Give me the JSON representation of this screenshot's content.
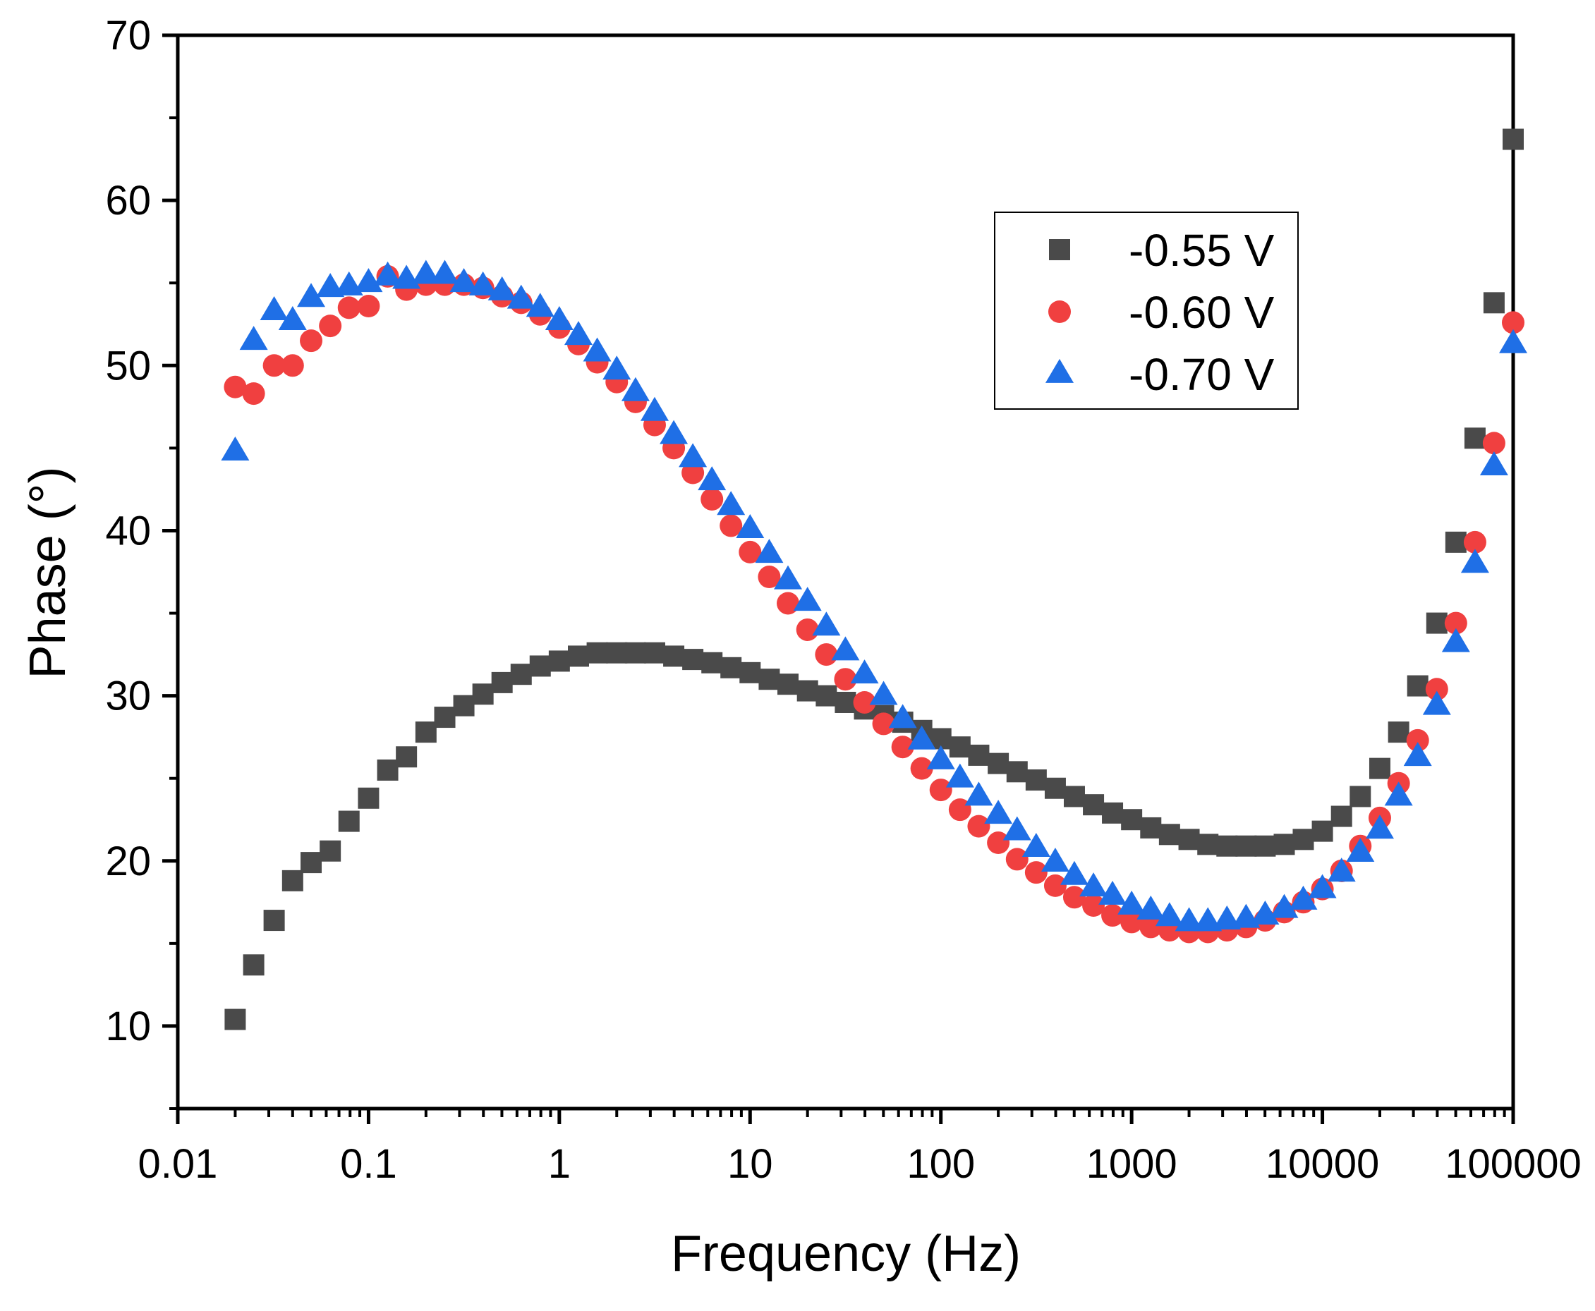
{
  "chart_data": {
    "type": "scatter",
    "title": "",
    "xlabel": "Frequency (Hz)",
    "ylabel": "Phase (°)",
    "xscale": "log",
    "xlim": [
      0.01,
      100000
    ],
    "ylim": [
      5,
      70
    ],
    "grid": false,
    "legend_position": "top-right",
    "xticks": [
      0.01,
      0.1,
      1,
      10,
      100,
      1000,
      10000,
      100000
    ],
    "xtick_labels": [
      "0.01",
      "0.1",
      "1",
      "10",
      "100",
      "1000",
      "10000",
      "100000"
    ],
    "yticks": [
      10,
      20,
      30,
      40,
      50,
      60,
      70
    ],
    "ytick_labels": [
      "10",
      "20",
      "30",
      "40",
      "50",
      "60",
      "70"
    ],
    "x": [
      0.02,
      0.025,
      0.032,
      0.04,
      0.05,
      0.063,
      0.079,
      0.1,
      0.126,
      0.158,
      0.2,
      0.251,
      0.316,
      0.398,
      0.501,
      0.631,
      0.794,
      1,
      1.26,
      1.58,
      2,
      2.51,
      3.16,
      3.98,
      5.01,
      6.31,
      7.94,
      10,
      12.6,
      15.8,
      20,
      25.1,
      31.6,
      39.8,
      50.1,
      63.1,
      79.4,
      100,
      126,
      158,
      200,
      251,
      316,
      398,
      501,
      631,
      794,
      1000,
      1260,
      1580,
      2000,
      2510,
      3160,
      3980,
      5010,
      6310,
      7940,
      10000,
      12600,
      15800,
      20000,
      25100,
      31600,
      39800,
      50100,
      63100,
      79400,
      100000
    ],
    "series": [
      {
        "name": "-0.55 V",
        "marker": "square",
        "color": "#4a4a4a",
        "values": [
          10.4,
          13.7,
          16.4,
          18.8,
          19.9,
          20.6,
          22.4,
          23.8,
          25.5,
          26.3,
          27.8,
          28.7,
          29.4,
          30.1,
          30.8,
          31.3,
          31.8,
          32.1,
          32.4,
          32.6,
          32.6,
          32.6,
          32.6,
          32.4,
          32.2,
          32.0,
          31.7,
          31.4,
          31.0,
          30.7,
          30.3,
          30.0,
          29.6,
          29.2,
          28.8,
          28.4,
          27.9,
          27.4,
          26.9,
          26.4,
          25.9,
          25.4,
          24.9,
          24.4,
          23.9,
          23.4,
          22.9,
          22.5,
          22.0,
          21.6,
          21.3,
          21.0,
          20.9,
          20.9,
          20.9,
          21.0,
          21.3,
          21.8,
          22.7,
          23.9,
          25.6,
          27.8,
          30.6,
          34.4,
          39.3,
          45.6,
          53.8,
          63.7
        ]
      },
      {
        "name": "-0.60 V",
        "marker": "circle",
        "color": "#f04040",
        "values": [
          48.7,
          48.3,
          50.0,
          50.0,
          51.5,
          52.4,
          53.5,
          53.6,
          55.4,
          54.6,
          54.9,
          54.9,
          54.9,
          54.7,
          54.2,
          53.8,
          53.1,
          52.3,
          51.3,
          50.2,
          49.0,
          47.8,
          46.4,
          45.0,
          43.5,
          41.9,
          40.3,
          38.7,
          37.2,
          35.6,
          34.0,
          32.5,
          31.0,
          29.6,
          28.3,
          26.9,
          25.6,
          24.3,
          23.1,
          22.1,
          21.1,
          20.1,
          19.3,
          18.5,
          17.8,
          17.3,
          16.7,
          16.3,
          16.0,
          15.8,
          15.7,
          15.7,
          15.8,
          16.0,
          16.4,
          16.9,
          17.5,
          18.3,
          19.4,
          20.9,
          22.6,
          24.7,
          27.3,
          30.4,
          34.4,
          39.3,
          45.3,
          52.6
        ]
      },
      {
        "name": "-0.70 V",
        "marker": "triangle",
        "color": "#1f6fe6",
        "values": [
          44.8,
          51.5,
          53.3,
          52.7,
          54.1,
          54.7,
          54.8,
          55.0,
          55.4,
          55.2,
          55.5,
          55.5,
          55.0,
          54.8,
          54.5,
          54.0,
          53.5,
          52.7,
          51.8,
          50.8,
          49.7,
          48.4,
          47.2,
          45.8,
          44.4,
          43.0,
          41.5,
          40.1,
          38.6,
          37.0,
          35.7,
          34.2,
          32.7,
          31.3,
          30.0,
          28.6,
          27.3,
          26.1,
          25.0,
          23.9,
          22.8,
          21.8,
          20.8,
          19.9,
          19.1,
          18.4,
          17.9,
          17.3,
          17.0,
          16.6,
          16.3,
          16.3,
          16.4,
          16.5,
          16.7,
          17.1,
          17.6,
          18.3,
          19.3,
          20.5,
          21.9,
          23.9,
          26.3,
          29.4,
          33.2,
          38.0,
          43.9,
          51.3
        ]
      }
    ]
  }
}
